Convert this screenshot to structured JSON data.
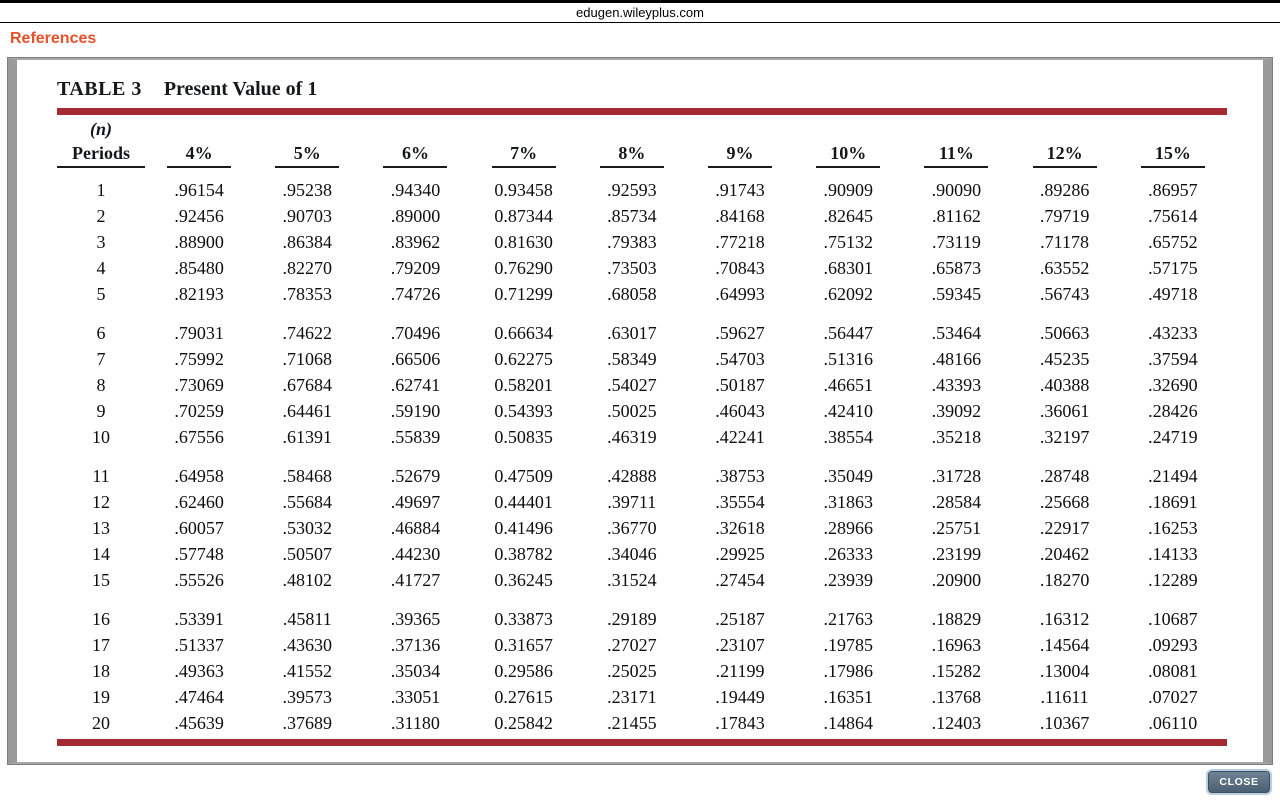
{
  "browser": {
    "url": "edugen.wileyplus.com"
  },
  "header": {
    "references_label": "References"
  },
  "table": {
    "title_label": "TABLE 3",
    "title_text": "Present Value of 1",
    "periods_header_top": "(n)",
    "periods_header": "Periods",
    "rate_headers": [
      "4%",
      "5%",
      "6%",
      "7%",
      "8%",
      "9%",
      "10%",
      "11%",
      "12%",
      "15%"
    ],
    "rows": [
      {
        "period": "1",
        "values": [
          ".96154",
          ".95238",
          ".94340",
          "0.93458",
          ".92593",
          ".91743",
          ".90909",
          ".90090",
          ".89286",
          ".86957"
        ]
      },
      {
        "period": "2",
        "values": [
          ".92456",
          ".90703",
          ".89000",
          "0.87344",
          ".85734",
          ".84168",
          ".82645",
          ".81162",
          ".79719",
          ".75614"
        ]
      },
      {
        "period": "3",
        "values": [
          ".88900",
          ".86384",
          ".83962",
          "0.81630",
          ".79383",
          ".77218",
          ".75132",
          ".73119",
          ".71178",
          ".65752"
        ]
      },
      {
        "period": "4",
        "values": [
          ".85480",
          ".82270",
          ".79209",
          "0.76290",
          ".73503",
          ".70843",
          ".68301",
          ".65873",
          ".63552",
          ".57175"
        ]
      },
      {
        "period": "5",
        "values": [
          ".82193",
          ".78353",
          ".74726",
          "0.71299",
          ".68058",
          ".64993",
          ".62092",
          ".59345",
          ".56743",
          ".49718"
        ]
      },
      {
        "period": "6",
        "values": [
          ".79031",
          ".74622",
          ".70496",
          "0.66634",
          ".63017",
          ".59627",
          ".56447",
          ".53464",
          ".50663",
          ".43233"
        ]
      },
      {
        "period": "7",
        "values": [
          ".75992",
          ".71068",
          ".66506",
          "0.62275",
          ".58349",
          ".54703",
          ".51316",
          ".48166",
          ".45235",
          ".37594"
        ]
      },
      {
        "period": "8",
        "values": [
          ".73069",
          ".67684",
          ".62741",
          "0.58201",
          ".54027",
          ".50187",
          ".46651",
          ".43393",
          ".40388",
          ".32690"
        ]
      },
      {
        "period": "9",
        "values": [
          ".70259",
          ".64461",
          ".59190",
          "0.54393",
          ".50025",
          ".46043",
          ".42410",
          ".39092",
          ".36061",
          ".28426"
        ]
      },
      {
        "period": "10",
        "values": [
          ".67556",
          ".61391",
          ".55839",
          "0.50835",
          ".46319",
          ".42241",
          ".38554",
          ".35218",
          ".32197",
          ".24719"
        ]
      },
      {
        "period": "11",
        "values": [
          ".64958",
          ".58468",
          ".52679",
          "0.47509",
          ".42888",
          ".38753",
          ".35049",
          ".31728",
          ".28748",
          ".21494"
        ]
      },
      {
        "period": "12",
        "values": [
          ".62460",
          ".55684",
          ".49697",
          "0.44401",
          ".39711",
          ".35554",
          ".31863",
          ".28584",
          ".25668",
          ".18691"
        ]
      },
      {
        "period": "13",
        "values": [
          ".60057",
          ".53032",
          ".46884",
          "0.41496",
          ".36770",
          ".32618",
          ".28966",
          ".25751",
          ".22917",
          ".16253"
        ]
      },
      {
        "period": "14",
        "values": [
          ".57748",
          ".50507",
          ".44230",
          "0.38782",
          ".34046",
          ".29925",
          ".26333",
          ".23199",
          ".20462",
          ".14133"
        ]
      },
      {
        "period": "15",
        "values": [
          ".55526",
          ".48102",
          ".41727",
          "0.36245",
          ".31524",
          ".27454",
          ".23939",
          ".20900",
          ".18270",
          ".12289"
        ]
      },
      {
        "period": "16",
        "values": [
          ".53391",
          ".45811",
          ".39365",
          "0.33873",
          ".29189",
          ".25187",
          ".21763",
          ".18829",
          ".16312",
          ".10687"
        ]
      },
      {
        "period": "17",
        "values": [
          ".51337",
          ".43630",
          ".37136",
          "0.31657",
          ".27027",
          ".23107",
          ".19785",
          ".16963",
          ".14564",
          ".09293"
        ]
      },
      {
        "period": "18",
        "values": [
          ".49363",
          ".41552",
          ".35034",
          "0.29586",
          ".25025",
          ".21199",
          ".17986",
          ".15282",
          ".13004",
          ".08081"
        ]
      },
      {
        "period": "19",
        "values": [
          ".47464",
          ".39573",
          ".33051",
          "0.27615",
          ".23171",
          ".19449",
          ".16351",
          ".13768",
          ".11611",
          ".07027"
        ]
      },
      {
        "period": "20",
        "values": [
          ".45639",
          ".37689",
          ".31180",
          "0.25842",
          ".21455",
          ".17843",
          ".14864",
          ".12403",
          ".10367",
          ".06110"
        ]
      }
    ]
  },
  "footer": {
    "close_label": "CLOSE"
  },
  "colors": {
    "accent_rule": "#a42a33",
    "references_link": "#e8502a",
    "frame_gray": "#9a9a9a",
    "close_button_top": "#6e8495",
    "close_button_bottom": "#4a5f71"
  }
}
